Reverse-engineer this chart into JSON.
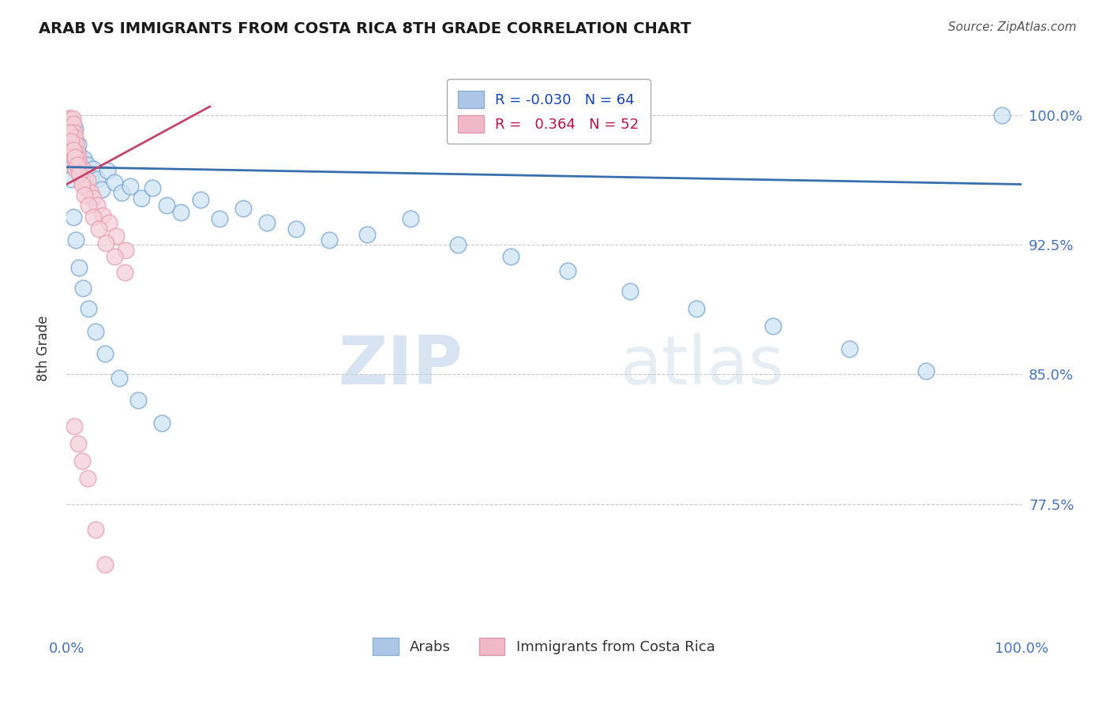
{
  "title": "ARAB VS IMMIGRANTS FROM COSTA RICA 8TH GRADE CORRELATION CHART",
  "source": "Source: ZipAtlas.com",
  "ylabel": "8th Grade",
  "xlim": [
    0.0,
    1.0
  ],
  "ylim": [
    0.7,
    1.03
  ],
  "yticks": [
    0.775,
    0.85,
    0.925,
    1.0
  ],
  "ytick_labels": [
    "77.5%",
    "85.0%",
    "92.5%",
    "100.0%"
  ],
  "grid_color": "#c8c8c8",
  "background_color": "#ffffff",
  "blue_color": "#7ba7d4",
  "pink_color": "#e8a0b0",
  "blue_line_color": "#3a6fad",
  "pink_line_color": "#c44569",
  "blue_R": -0.03,
  "blue_N": 64,
  "pink_R": 0.364,
  "pink_N": 52,
  "legend_label_blue": "Arabs",
  "legend_label_pink": "Immigrants from Costa Rica",
  "watermark_zip": "ZIP",
  "watermark_atlas": "atlas",
  "blue_trend_x": [
    0.0,
    1.0
  ],
  "blue_trend_y": [
    0.97,
    0.96
  ],
  "pink_trend_x": [
    0.0,
    0.15
  ],
  "pink_trend_y": [
    0.96,
    1.005
  ],
  "blue_x": [
    0.003,
    0.004,
    0.004,
    0.005,
    0.005,
    0.006,
    0.006,
    0.007,
    0.007,
    0.008,
    0.008,
    0.009,
    0.009,
    0.01,
    0.01,
    0.011,
    0.012,
    0.013,
    0.014,
    0.015,
    0.016,
    0.018,
    0.02,
    0.022,
    0.025,
    0.028,
    0.032,
    0.037,
    0.043,
    0.05,
    0.058,
    0.067,
    0.078,
    0.09,
    0.105,
    0.12,
    0.14,
    0.16,
    0.185,
    0.21,
    0.24,
    0.275,
    0.315,
    0.36,
    0.41,
    0.465,
    0.525,
    0.59,
    0.66,
    0.74,
    0.82,
    0.9,
    0.98,
    0.005,
    0.007,
    0.01,
    0.013,
    0.017,
    0.023,
    0.03,
    0.04,
    0.055,
    0.075,
    0.1
  ],
  "blue_y": [
    0.998,
    0.993,
    0.988,
    0.985,
    0.997,
    0.991,
    0.978,
    0.994,
    0.982,
    0.988,
    0.975,
    0.992,
    0.969,
    0.985,
    0.973,
    0.979,
    0.983,
    0.976,
    0.97,
    0.967,
    0.972,
    0.975,
    0.968,
    0.971,
    0.964,
    0.969,
    0.963,
    0.957,
    0.968,
    0.961,
    0.955,
    0.959,
    0.952,
    0.958,
    0.948,
    0.944,
    0.951,
    0.94,
    0.946,
    0.938,
    0.934,
    0.928,
    0.931,
    0.94,
    0.925,
    0.918,
    0.91,
    0.898,
    0.888,
    0.878,
    0.865,
    0.852,
    1.0,
    0.963,
    0.941,
    0.928,
    0.912,
    0.9,
    0.888,
    0.875,
    0.862,
    0.848,
    0.835,
    0.822
  ],
  "pink_x": [
    0.002,
    0.003,
    0.004,
    0.004,
    0.005,
    0.005,
    0.006,
    0.006,
    0.007,
    0.007,
    0.008,
    0.008,
    0.009,
    0.009,
    0.01,
    0.01,
    0.011,
    0.012,
    0.013,
    0.014,
    0.015,
    0.016,
    0.018,
    0.02,
    0.022,
    0.025,
    0.028,
    0.032,
    0.038,
    0.044,
    0.052,
    0.062,
    0.003,
    0.005,
    0.007,
    0.009,
    0.011,
    0.013,
    0.016,
    0.019,
    0.023,
    0.028,
    0.034,
    0.041,
    0.05,
    0.061,
    0.008,
    0.012,
    0.016,
    0.022,
    0.03,
    0.04
  ],
  "pink_y": [
    0.998,
    0.995,
    0.992,
    0.987,
    0.993,
    0.984,
    0.998,
    0.981,
    0.995,
    0.978,
    0.99,
    0.975,
    0.987,
    0.972,
    0.983,
    0.969,
    0.978,
    0.975,
    0.972,
    0.969,
    0.965,
    0.962,
    0.968,
    0.958,
    0.962,
    0.955,
    0.952,
    0.948,
    0.942,
    0.938,
    0.93,
    0.922,
    0.99,
    0.985,
    0.98,
    0.976,
    0.971,
    0.966,
    0.96,
    0.954,
    0.948,
    0.941,
    0.934,
    0.926,
    0.918,
    0.909,
    0.82,
    0.81,
    0.8,
    0.79,
    0.76,
    0.74
  ]
}
